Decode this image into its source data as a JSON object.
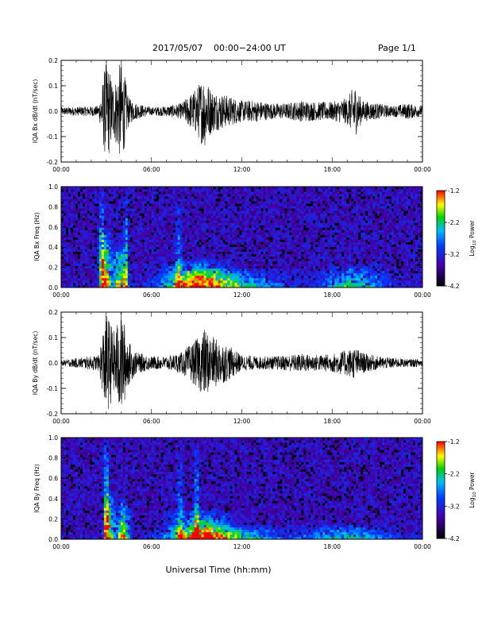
{
  "header": {
    "date": "2017/05/07",
    "time_range": "00:00−24:00 UT",
    "page": "Page 1/1"
  },
  "footer": {
    "xlabel": "Universal Time (hh:mm)"
  },
  "colorbar": {
    "label_prefix": "Log",
    "label_sub": "10",
    "label_suffix": " Power",
    "ticks": [
      "-1.2",
      "-2.2",
      "-3.2",
      "-4.2"
    ]
  },
  "xticks": [
    "00:00",
    "06:00",
    "12:00",
    "18:00",
    "00:00"
  ],
  "ts_yticks": [
    "0.2",
    "0.1",
    "0.0",
    "-0.1",
    "-0.2"
  ],
  "sp_yticks": [
    "1.0",
    "0.8",
    "0.6",
    "0.4",
    "0.2",
    "0.0"
  ],
  "colors": {
    "spec_low": "#000000",
    "spec_mid": "#1040ff",
    "spec_high": "#ff0000"
  },
  "chart_data": [
    {
      "type": "line",
      "title": "",
      "ylabel": "IQA Bx dB/dt (nT/sec)",
      "xlabel": "",
      "xlim": [
        "00:00",
        "24:00"
      ],
      "ylim": [
        -0.2,
        0.2
      ],
      "series": [
        {
          "x_hours": [
            0,
            2.5,
            3.0,
            3.5,
            4.0,
            4.5,
            5.0,
            6.0,
            7.0,
            8.0,
            9.0,
            9.5,
            10.0,
            11.0,
            12.0,
            13.0,
            14.0,
            15.0,
            16.0,
            17.0,
            18.0,
            19.0,
            19.5,
            20.0,
            21.0,
            22.0,
            23.0,
            24.0
          ],
          "amplitude": [
            0.015,
            0.02,
            0.2,
            0.1,
            0.2,
            0.05,
            0.03,
            0.015,
            0.02,
            0.03,
            0.09,
            0.14,
            0.08,
            0.06,
            0.04,
            0.04,
            0.03,
            0.03,
            0.04,
            0.035,
            0.035,
            0.05,
            0.1,
            0.04,
            0.03,
            0.02,
            0.03,
            0.02
          ]
        }
      ]
    },
    {
      "type": "heatmap",
      "title": "",
      "ylabel": "IQA Bx Freq (Hz)",
      "xlim": [
        "00:00",
        "24:00"
      ],
      "ylim": [
        0.0,
        1.0
      ],
      "zlim": [
        -4.2,
        -1.2
      ],
      "zlabel": "Log10 Power",
      "features": [
        {
          "t_hours": 2.7,
          "width": 0.12,
          "power": 0.75,
          "fmax": 1.0
        },
        {
          "t_hours": 3.0,
          "width": 0.22,
          "power": 0.85,
          "fmax": 0.6
        },
        {
          "t_hours": 3.9,
          "width": 0.3,
          "power": 0.8,
          "fmax": 0.45
        },
        {
          "t_hours": 4.3,
          "width": 0.08,
          "power": 0.65,
          "fmax": 1.0
        },
        {
          "t_hours": 7.8,
          "width": 0.12,
          "power": 0.45,
          "fmax": 0.9
        },
        {
          "t_hours": 9.0,
          "width": 1.4,
          "power": 0.75,
          "fmax": 0.3
        },
        {
          "t_hours": 11.0,
          "width": 2.5,
          "power": 0.5,
          "fmax": 0.2
        },
        {
          "t_hours": 19.5,
          "width": 1.5,
          "power": 0.5,
          "fmax": 0.25
        }
      ]
    },
    {
      "type": "line",
      "title": "",
      "ylabel": "IQA By dB/dt (nT/sec)",
      "xlabel": "",
      "xlim": [
        "00:00",
        "24:00"
      ],
      "ylim": [
        -0.2,
        0.2
      ],
      "series": [
        {
          "x_hours": [
            0,
            2.5,
            3.0,
            3.5,
            4.0,
            4.5,
            5.0,
            6.0,
            7.0,
            8.0,
            9.0,
            9.5,
            10.0,
            11.0,
            12.0,
            13.0,
            14.0,
            15.0,
            16.0,
            17.0,
            18.0,
            19.0,
            19.5,
            20.0,
            21.0,
            22.0,
            23.0,
            24.0
          ],
          "amplitude": [
            0.01,
            0.03,
            0.2,
            0.12,
            0.2,
            0.08,
            0.04,
            0.025,
            0.025,
            0.04,
            0.09,
            0.13,
            0.1,
            0.07,
            0.03,
            0.025,
            0.025,
            0.03,
            0.035,
            0.03,
            0.035,
            0.05,
            0.06,
            0.04,
            0.025,
            0.02,
            0.015,
            0.015
          ]
        }
      ]
    },
    {
      "type": "heatmap",
      "title": "",
      "ylabel": "IQA By Freq (Hz)",
      "xlim": [
        "00:00",
        "24:00"
      ],
      "ylim": [
        0.0,
        1.0
      ],
      "zlim": [
        -4.2,
        -1.2
      ],
      "zlabel": "Log10 Power",
      "features": [
        {
          "t_hours": 3.0,
          "width": 0.1,
          "power": 0.9,
          "fmax": 1.0
        },
        {
          "t_hours": 3.2,
          "width": 0.2,
          "power": 0.75,
          "fmax": 0.5
        },
        {
          "t_hours": 4.1,
          "width": 0.3,
          "power": 0.8,
          "fmax": 0.4
        },
        {
          "t_hours": 7.9,
          "width": 0.15,
          "power": 0.4,
          "fmax": 0.9
        },
        {
          "t_hours": 9.0,
          "width": 0.12,
          "power": 0.5,
          "fmax": 1.0
        },
        {
          "t_hours": 9.3,
          "width": 1.3,
          "power": 0.75,
          "fmax": 0.3
        },
        {
          "t_hours": 11.0,
          "width": 2.5,
          "power": 0.5,
          "fmax": 0.15
        },
        {
          "t_hours": 19.0,
          "width": 2.0,
          "power": 0.45,
          "fmax": 0.15
        }
      ]
    }
  ]
}
